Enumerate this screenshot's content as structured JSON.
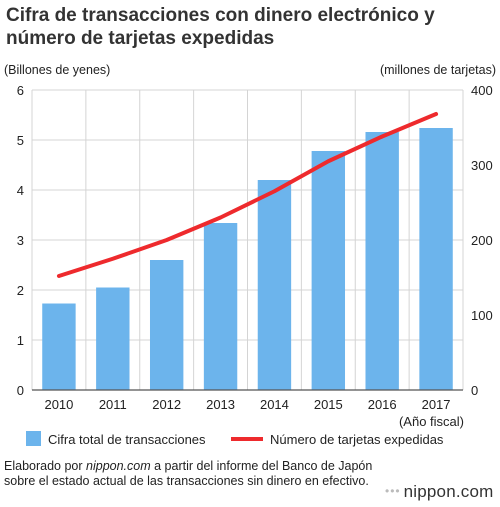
{
  "chart_data": {
    "title": "Cifra de transacciones con dinero electrónico y número de tarjetas expedidas",
    "type": "bar+line",
    "categories": [
      "2010",
      "2011",
      "2012",
      "2013",
      "2014",
      "2015",
      "2016",
      "2017"
    ],
    "xlabel": "(Año fiscal)",
    "y_left": {
      "label": "(Billones de yenes)",
      "range": [
        0,
        6
      ],
      "ticks": [
        "0",
        "1",
        "2",
        "3",
        "4",
        "5",
        "6"
      ]
    },
    "y_right": {
      "label": "(millones de tarjetas)",
      "range": [
        0,
        400
      ],
      "ticks": [
        "0",
        "100",
        "200",
        "300",
        "400"
      ]
    },
    "grid": true,
    "legend_position": "bottom",
    "series": [
      {
        "name": "Cifra total de transacciones",
        "type": "bar",
        "axis": "left",
        "color": "#6cb4ec",
        "values": [
          1.73,
          2.05,
          2.6,
          3.34,
          4.2,
          4.78,
          5.16,
          5.24
        ]
      },
      {
        "name": "Número de tarjetas expedidas",
        "type": "line",
        "axis": "right",
        "color": "#ee2a2d",
        "values": [
          152,
          175,
          200,
          230,
          265,
          305,
          338,
          368
        ]
      }
    ]
  },
  "source": {
    "prefix": "Elaborado por ",
    "site": "nippon.com",
    "suffix": " a partir del informe del Banco de Japón sobre el estado actual de las transacciones sin dinero en efectivo."
  },
  "logo": {
    "dots": "•••",
    "text": "nippon.com"
  }
}
